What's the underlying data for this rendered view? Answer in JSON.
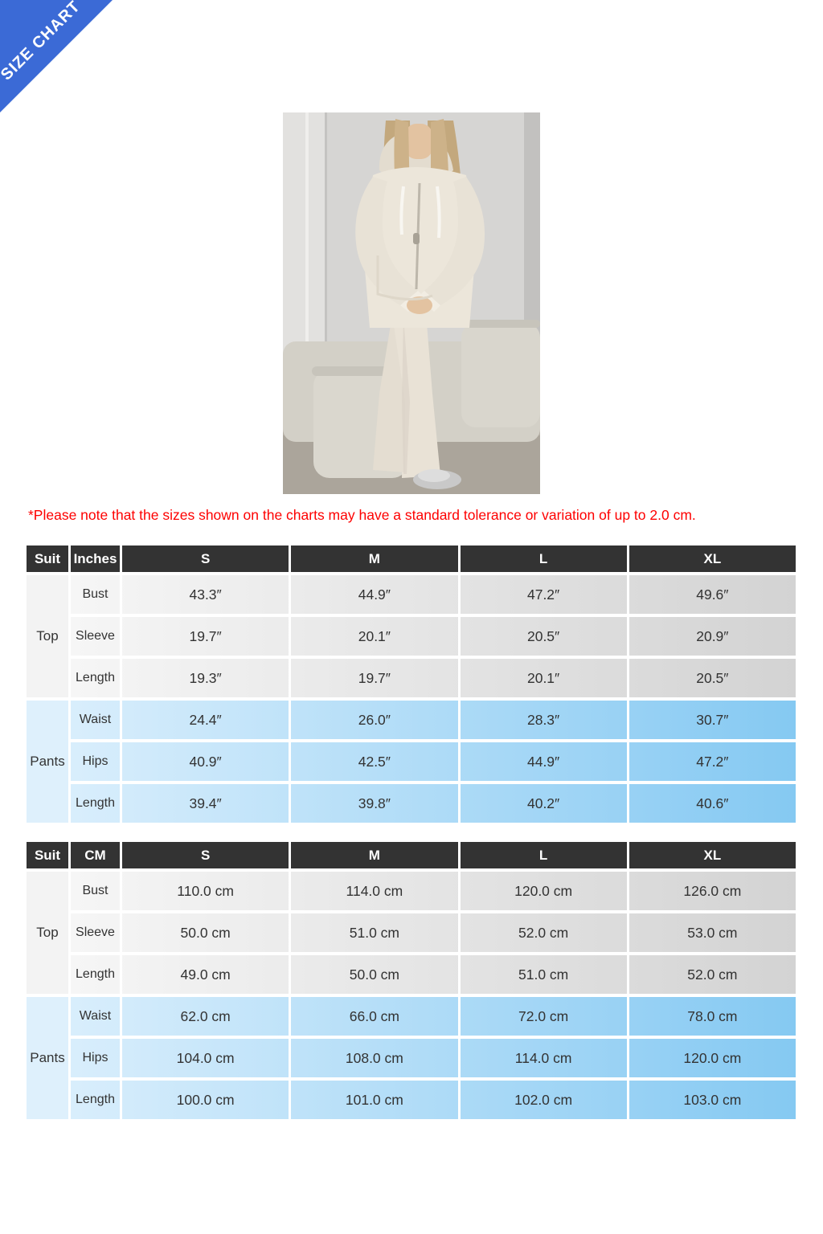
{
  "banner": {
    "label": "SIZE CHART",
    "color": "#3b6ad6"
  },
  "photo": {
    "alt": "model-in-beige-zip-hoodie-and-pants-set"
  },
  "note": "*Please note that the sizes shown on the charts may have a standard tolerance or variation of up to 2.0 cm.",
  "note_color": "#fe0000",
  "colors": {
    "header_bg": "#333333",
    "top_row_gradient": [
      "#f6f6f6",
      "#d3d3d3"
    ],
    "pants_row_gradient": [
      "#d9eefc",
      "#85c9f2"
    ],
    "top_suit_cell": "#f3f3f3",
    "pants_suit_cell": "#def0fc"
  },
  "tables": [
    {
      "columns": [
        "Suit",
        "Inches",
        "S",
        "M",
        "L",
        "XL"
      ],
      "sections": [
        {
          "label": "Top",
          "rows": [
            {
              "label": "Bust",
              "values": [
                "43.3″",
                "44.9″",
                "47.2″",
                "49.6″"
              ]
            },
            {
              "label": "Sleeve",
              "values": [
                "19.7″",
                "20.1″",
                "20.5″",
                "20.9″"
              ]
            },
            {
              "label": "Length",
              "values": [
                "19.3″",
                "19.7″",
                "20.1″",
                "20.5″"
              ]
            }
          ]
        },
        {
          "label": "Pants",
          "rows": [
            {
              "label": "Waist",
              "values": [
                "24.4″",
                "26.0″",
                "28.3″",
                "30.7″"
              ]
            },
            {
              "label": "Hips",
              "values": [
                "40.9″",
                "42.5″",
                "44.9″",
                "47.2″"
              ]
            },
            {
              "label": "Length",
              "values": [
                "39.4″",
                "39.8″",
                "40.2″",
                "40.6″"
              ]
            }
          ]
        }
      ]
    },
    {
      "columns": [
        "Suit",
        "CM",
        "S",
        "M",
        "L",
        "XL"
      ],
      "sections": [
        {
          "label": "Top",
          "rows": [
            {
              "label": "Bust",
              "values": [
                "110.0 cm",
                "114.0 cm",
                "120.0 cm",
                "126.0 cm"
              ]
            },
            {
              "label": "Sleeve",
              "values": [
                "50.0 cm",
                "51.0 cm",
                "52.0 cm",
                "53.0 cm"
              ]
            },
            {
              "label": "Length",
              "values": [
                "49.0 cm",
                "50.0 cm",
                "51.0 cm",
                "52.0 cm"
              ]
            }
          ]
        },
        {
          "label": "Pants",
          "rows": [
            {
              "label": "Waist",
              "values": [
                "62.0 cm",
                "66.0 cm",
                "72.0 cm",
                "78.0 cm"
              ]
            },
            {
              "label": "Hips",
              "values": [
                "104.0 cm",
                "108.0 cm",
                "114.0 cm",
                "120.0 cm"
              ]
            },
            {
              "label": "Length",
              "values": [
                "100.0 cm",
                "101.0 cm",
                "102.0 cm",
                "103.0 cm"
              ]
            }
          ]
        }
      ]
    }
  ]
}
